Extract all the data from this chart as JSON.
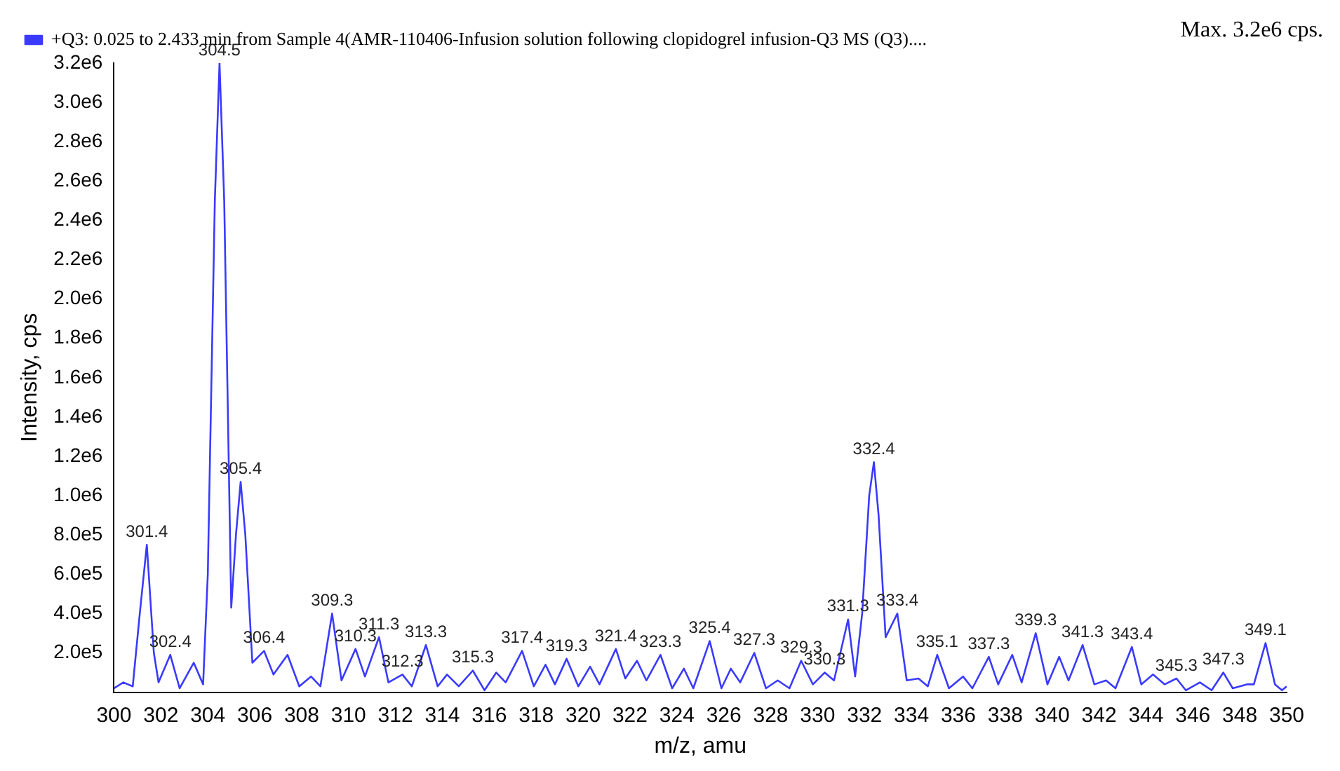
{
  "chart_data": {
    "type": "line",
    "xlabel": "m/z, amu",
    "ylabel": "Intensity, cps",
    "legend": "top left",
    "grid": false,
    "marker": "none",
    "line_style": "solid",
    "annotations": [
      "Max. 3.2e6 cps.",
      {
        "text": "301.4",
        "x": 301.4,
        "y": 750000
      },
      {
        "text": "302.4",
        "x": 302.4,
        "y": 190000
      },
      {
        "text": "304.5",
        "x": 304.5,
        "y": 3200000
      },
      {
        "text": "305.4",
        "x": 305.4,
        "y": 1070000
      },
      {
        "text": "306.4",
        "x": 306.4,
        "y": 210000
      },
      {
        "text": "309.3",
        "x": 309.3,
        "y": 400000
      },
      {
        "text": "310.3",
        "x": 310.3,
        "y": 220000
      },
      {
        "text": "311.3",
        "x": 311.3,
        "y": 280000
      },
      {
        "text": "312.3",
        "x": 312.3,
        "y": 90000
      },
      {
        "text": "313.3",
        "x": 313.3,
        "y": 240000
      },
      {
        "text": "315.3",
        "x": 315.3,
        "y": 110000
      },
      {
        "text": "317.4",
        "x": 317.4,
        "y": 210000
      },
      {
        "text": "319.3",
        "x": 319.3,
        "y": 170000
      },
      {
        "text": "321.4",
        "x": 321.4,
        "y": 220000
      },
      {
        "text": "323.3",
        "x": 323.3,
        "y": 190000
      },
      {
        "text": "325.4",
        "x": 325.4,
        "y": 260000
      },
      {
        "text": "327.3",
        "x": 327.3,
        "y": 200000
      },
      {
        "text": "329.3",
        "x": 329.3,
        "y": 160000
      },
      {
        "text": "330.3",
        "x": 330.3,
        "y": 100000
      },
      {
        "text": "331.3",
        "x": 331.3,
        "y": 370000
      },
      {
        "text": "332.4",
        "x": 332.4,
        "y": 1170000
      },
      {
        "text": "333.4",
        "x": 333.4,
        "y": 400000
      },
      {
        "text": "335.1",
        "x": 335.1,
        "y": 190000
      },
      {
        "text": "337.3",
        "x": 337.3,
        "y": 180000
      },
      {
        "text": "339.3",
        "x": 339.3,
        "y": 300000
      },
      {
        "text": "341.3",
        "x": 341.3,
        "y": 240000
      },
      {
        "text": "343.4",
        "x": 343.4,
        "y": 230000
      },
      {
        "text": "345.3",
        "x": 345.3,
        "y": 70000
      },
      {
        "text": "347.3",
        "x": 347.3,
        "y": 100000
      },
      {
        "text": "349.1",
        "x": 349.1,
        "y": 250000
      }
    ],
    "xlim": [
      300,
      350
    ],
    "xticks": [
      300,
      302,
      304,
      306,
      308,
      310,
      312,
      314,
      316,
      318,
      320,
      322,
      324,
      326,
      328,
      330,
      332,
      334,
      336,
      338,
      340,
      342,
      344,
      346,
      348,
      350
    ],
    "ylim": [
      0,
      3200000
    ],
    "yticks": [
      {
        "value": 200000,
        "label": "2.0e5"
      },
      {
        "value": 400000,
        "label": "4.0e5"
      },
      {
        "value": 600000,
        "label": "6.0e5"
      },
      {
        "value": 800000,
        "label": "8.0e5"
      },
      {
        "value": 1000000,
        "label": "1.0e6"
      },
      {
        "value": 1200000,
        "label": "1.2e6"
      },
      {
        "value": 1400000,
        "label": "1.4e6"
      },
      {
        "value": 1600000,
        "label": "1.6e6"
      },
      {
        "value": 1800000,
        "label": "1.8e6"
      },
      {
        "value": 2000000,
        "label": "2.0e6"
      },
      {
        "value": 2200000,
        "label": "2.2e6"
      },
      {
        "value": 2400000,
        "label": "2.4e6"
      },
      {
        "value": 2600000,
        "label": "2.6e6"
      },
      {
        "value": 2800000,
        "label": "2.8e6"
      },
      {
        "value": 3000000,
        "label": "3.0e6"
      },
      {
        "value": 3200000,
        "label": "3.2e6"
      }
    ],
    "series": [
      {
        "name": "+Q3: 0.025 to 2.433 min from Sample 4(AMR-110406-Infusion solution following clopidogrel infusion-Q3 MS (Q3)....",
        "color": "#3a3aff",
        "x": [
          300.0,
          300.4,
          300.8,
          301.1,
          301.4,
          301.7,
          301.9,
          302.4,
          302.8,
          303.4,
          303.8,
          304.0,
          304.3,
          304.5,
          304.7,
          305.0,
          305.2,
          305.4,
          305.6,
          305.9,
          306.4,
          306.8,
          307.4,
          307.9,
          308.4,
          308.8,
          309.3,
          309.7,
          310.3,
          310.7,
          311.3,
          311.7,
          312.3,
          312.7,
          313.3,
          313.8,
          314.2,
          314.7,
          315.3,
          315.8,
          316.3,
          316.7,
          317.4,
          317.9,
          318.4,
          318.8,
          319.3,
          319.8,
          320.3,
          320.7,
          321.4,
          321.8,
          322.3,
          322.7,
          323.3,
          323.8,
          324.3,
          324.7,
          325.4,
          325.9,
          326.3,
          326.7,
          327.3,
          327.8,
          328.3,
          328.8,
          329.3,
          329.8,
          330.3,
          330.7,
          331.3,
          331.6,
          331.9,
          332.2,
          332.4,
          332.6,
          332.9,
          333.4,
          333.8,
          334.3,
          334.7,
          335.1,
          335.6,
          336.2,
          336.6,
          337.3,
          337.7,
          338.3,
          338.7,
          339.3,
          339.8,
          340.3,
          340.7,
          341.3,
          341.8,
          342.3,
          342.7,
          343.4,
          343.8,
          344.3,
          344.8,
          345.3,
          345.7,
          346.3,
          346.8,
          347.3,
          347.7,
          348.3,
          348.6,
          349.1,
          349.5,
          349.8,
          350.0
        ],
        "values": [
          20000,
          50000,
          30000,
          400000,
          750000,
          200000,
          50000,
          190000,
          20000,
          150000,
          40000,
          600000,
          2500000,
          3200000,
          2500000,
          430000,
          800000,
          1070000,
          800000,
          150000,
          210000,
          90000,
          190000,
          30000,
          80000,
          30000,
          400000,
          60000,
          220000,
          80000,
          280000,
          50000,
          90000,
          30000,
          240000,
          30000,
          90000,
          30000,
          110000,
          10000,
          100000,
          50000,
          210000,
          30000,
          140000,
          40000,
          170000,
          30000,
          130000,
          40000,
          220000,
          70000,
          160000,
          60000,
          190000,
          20000,
          120000,
          20000,
          260000,
          20000,
          120000,
          50000,
          200000,
          20000,
          60000,
          20000,
          160000,
          40000,
          100000,
          60000,
          370000,
          80000,
          400000,
          1000000,
          1170000,
          900000,
          280000,
          400000,
          60000,
          70000,
          30000,
          190000,
          20000,
          80000,
          20000,
          180000,
          40000,
          190000,
          50000,
          300000,
          40000,
          180000,
          60000,
          240000,
          40000,
          60000,
          20000,
          230000,
          40000,
          90000,
          40000,
          70000,
          10000,
          50000,
          10000,
          100000,
          20000,
          40000,
          40000,
          250000,
          40000,
          10000,
          30000
        ]
      }
    ]
  }
}
